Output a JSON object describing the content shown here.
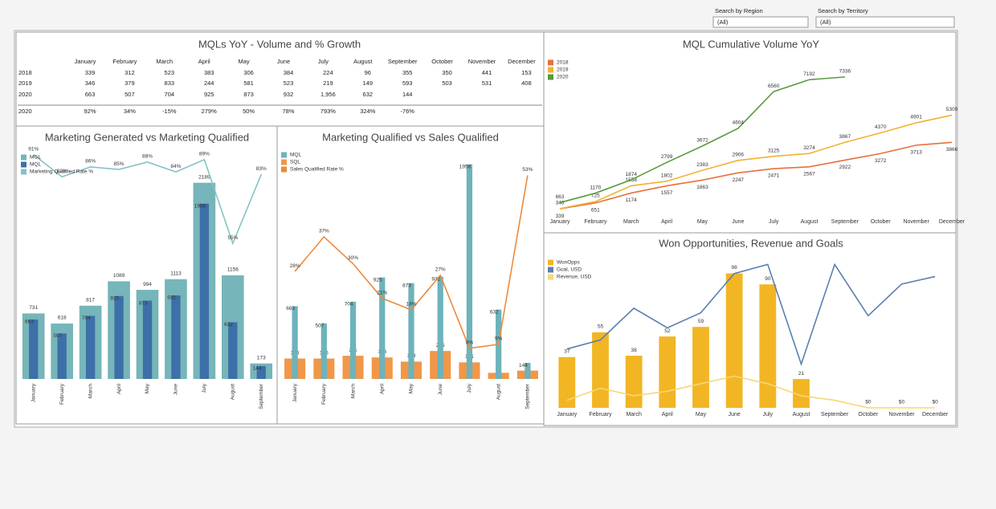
{
  "filters": [
    {
      "label": "Search by Region",
      "value": "(All)"
    },
    {
      "label": "Search by Territory",
      "value": "(All)"
    }
  ],
  "table": {
    "title": "MQLs YoY - Volume and % Growth",
    "columns": [
      "January",
      "February",
      "March",
      "April",
      "May",
      "June",
      "July",
      "August",
      "September",
      "October",
      "November",
      "December"
    ],
    "rows": [
      {
        "label": "2018",
        "cells": [
          "339",
          "312",
          "523",
          "383",
          "306",
          "384",
          "224",
          "96",
          "355",
          "350",
          "441",
          "153"
        ]
      },
      {
        "label": "2019",
        "cells": [
          "346",
          "379",
          "833",
          "244",
          "581",
          "523",
          "219",
          "149",
          "593",
          "503",
          "531",
          "408"
        ]
      },
      {
        "label": "2020",
        "cells": [
          "663",
          "507",
          "704",
          "925",
          "873",
          "932",
          "1,956",
          "632",
          "144",
          null,
          null,
          null
        ]
      },
      {
        "label": "2020",
        "cells": [
          "92%",
          "34%",
          "-15%",
          "279%",
          "50%",
          "78%",
          "793%",
          "324%",
          "-76%",
          null,
          null,
          null
        ]
      }
    ]
  },
  "chart_data": [
    {
      "type": "combo",
      "title": "Marketing Generated vs Marketing Qualified",
      "categories": [
        "January",
        "February",
        "March",
        "April",
        "May",
        "June",
        "July",
        "August",
        "September"
      ],
      "ylim": [
        0,
        2750
      ],
      "y2lim": [
        0,
        100
      ],
      "series": [
        {
          "name": "MGL",
          "kind": "bar",
          "color": "#76b5b9",
          "values": [
            731,
            618,
            817,
            1089,
            994,
            1113,
            2189,
            1156,
            173
          ]
        },
        {
          "name": "MQL",
          "kind": "bar",
          "color": "#3d6fa8",
          "values": [
            663,
            507,
            704,
            925,
            873,
            932,
            1956,
            632,
            144
          ]
        },
        {
          "name": "Marketing Qualified Rate %",
          "kind": "line",
          "axis": "y2",
          "color": "#86c2c6",
          "values": [
            91,
            82,
            86,
            85,
            88,
            84,
            89,
            55,
            83
          ],
          "value_labels": [
            "91%",
            "82%",
            "86%",
            "85%",
            "88%",
            "84%",
            "89%",
            "55%",
            "83%"
          ]
        }
      ]
    },
    {
      "type": "combo",
      "title": "Marketing Qualified vs Sales Qualified",
      "categories": [
        "January",
        "February",
        "March",
        "April",
        "May",
        "June",
        "July",
        "August",
        "September"
      ],
      "ylim": [
        0,
        2100
      ],
      "y2lim": [
        0,
        60
      ],
      "series": [
        {
          "name": "MQL",
          "kind": "bar",
          "color": "#6db3bb",
          "values": [
            663,
            507,
            704,
            925,
            873,
            932,
            1956,
            632,
            144
          ]
        },
        {
          "name": "SQL",
          "kind": "bar",
          "color": "#f0974a",
          "values": [
            186,
            186,
            211,
            196,
            158,
            255,
            151,
            56,
            76
          ]
        },
        {
          "name": "Sales Qualified Rate %",
          "kind": "line",
          "axis": "y2",
          "color": "#ee8a3c",
          "values": [
            28,
            37,
            30,
            21,
            18,
            27,
            8,
            9,
            53
          ],
          "value_labels": [
            "28%",
            "37%",
            "30%",
            "21%",
            "18%",
            "27%",
            "8%",
            "9%",
            "53%"
          ]
        }
      ]
    },
    {
      "type": "line",
      "title": "MQL Cumulative Volume YoY",
      "categories": [
        "January",
        "February",
        "March",
        "April",
        "May",
        "June",
        "July",
        "August",
        "September",
        "October",
        "November",
        "December"
      ],
      "ylim": [
        0,
        7800
      ],
      "series": [
        {
          "name": "2018",
          "color": "#e8703a",
          "values": [
            339,
            651,
            1174,
            1557,
            1863,
            2247,
            2471,
            2567,
            2922,
            3272,
            3713,
            3866
          ]
        },
        {
          "name": "2019",
          "color": "#f2b233",
          "values": [
            346,
            725,
            1558,
            1802,
            2383,
            2906,
            3125,
            3274,
            3867,
            4370,
            4901,
            5309
          ]
        },
        {
          "name": "2020",
          "color": "#5a9a3e",
          "values": [
            663,
            1170,
            1874,
            2799,
            3672,
            4604,
            6560,
            7192,
            7336,
            null,
            null,
            null
          ]
        }
      ]
    },
    {
      "type": "combo",
      "title": "Won Opportunities, Revenue and Goals",
      "categories": [
        "January",
        "February",
        "March",
        "April",
        "May",
        "June",
        "July",
        "August",
        "September",
        "October",
        "November",
        "December"
      ],
      "ylim": [
        0,
        110
      ],
      "y2lim": [
        0,
        100
      ],
      "series": [
        {
          "name": "WonOpps",
          "kind": "bar",
          "color": "#f2b624",
          "values": [
            37,
            55,
            38,
            52,
            59,
            98,
            90,
            21,
            null,
            null,
            null,
            null
          ]
        },
        {
          "name": "Goal, USD",
          "kind": "line",
          "axis": "y2",
          "color": "#5a7fb0",
          "values": [
            39,
            45,
            66,
            53,
            63,
            89,
            95,
            29,
            95,
            61,
            82,
            87
          ]
        },
        {
          "name": "Revenue, USD",
          "kind": "line",
          "axis": "y2",
          "color": "#f5d77a",
          "values": [
            5,
            13,
            8,
            11,
            16,
            21,
            16,
            8,
            5,
            0,
            0,
            0
          ],
          "value_labels": [
            null,
            null,
            null,
            null,
            null,
            null,
            null,
            null,
            null,
            "$0",
            "$0",
            "$0"
          ]
        }
      ]
    }
  ]
}
